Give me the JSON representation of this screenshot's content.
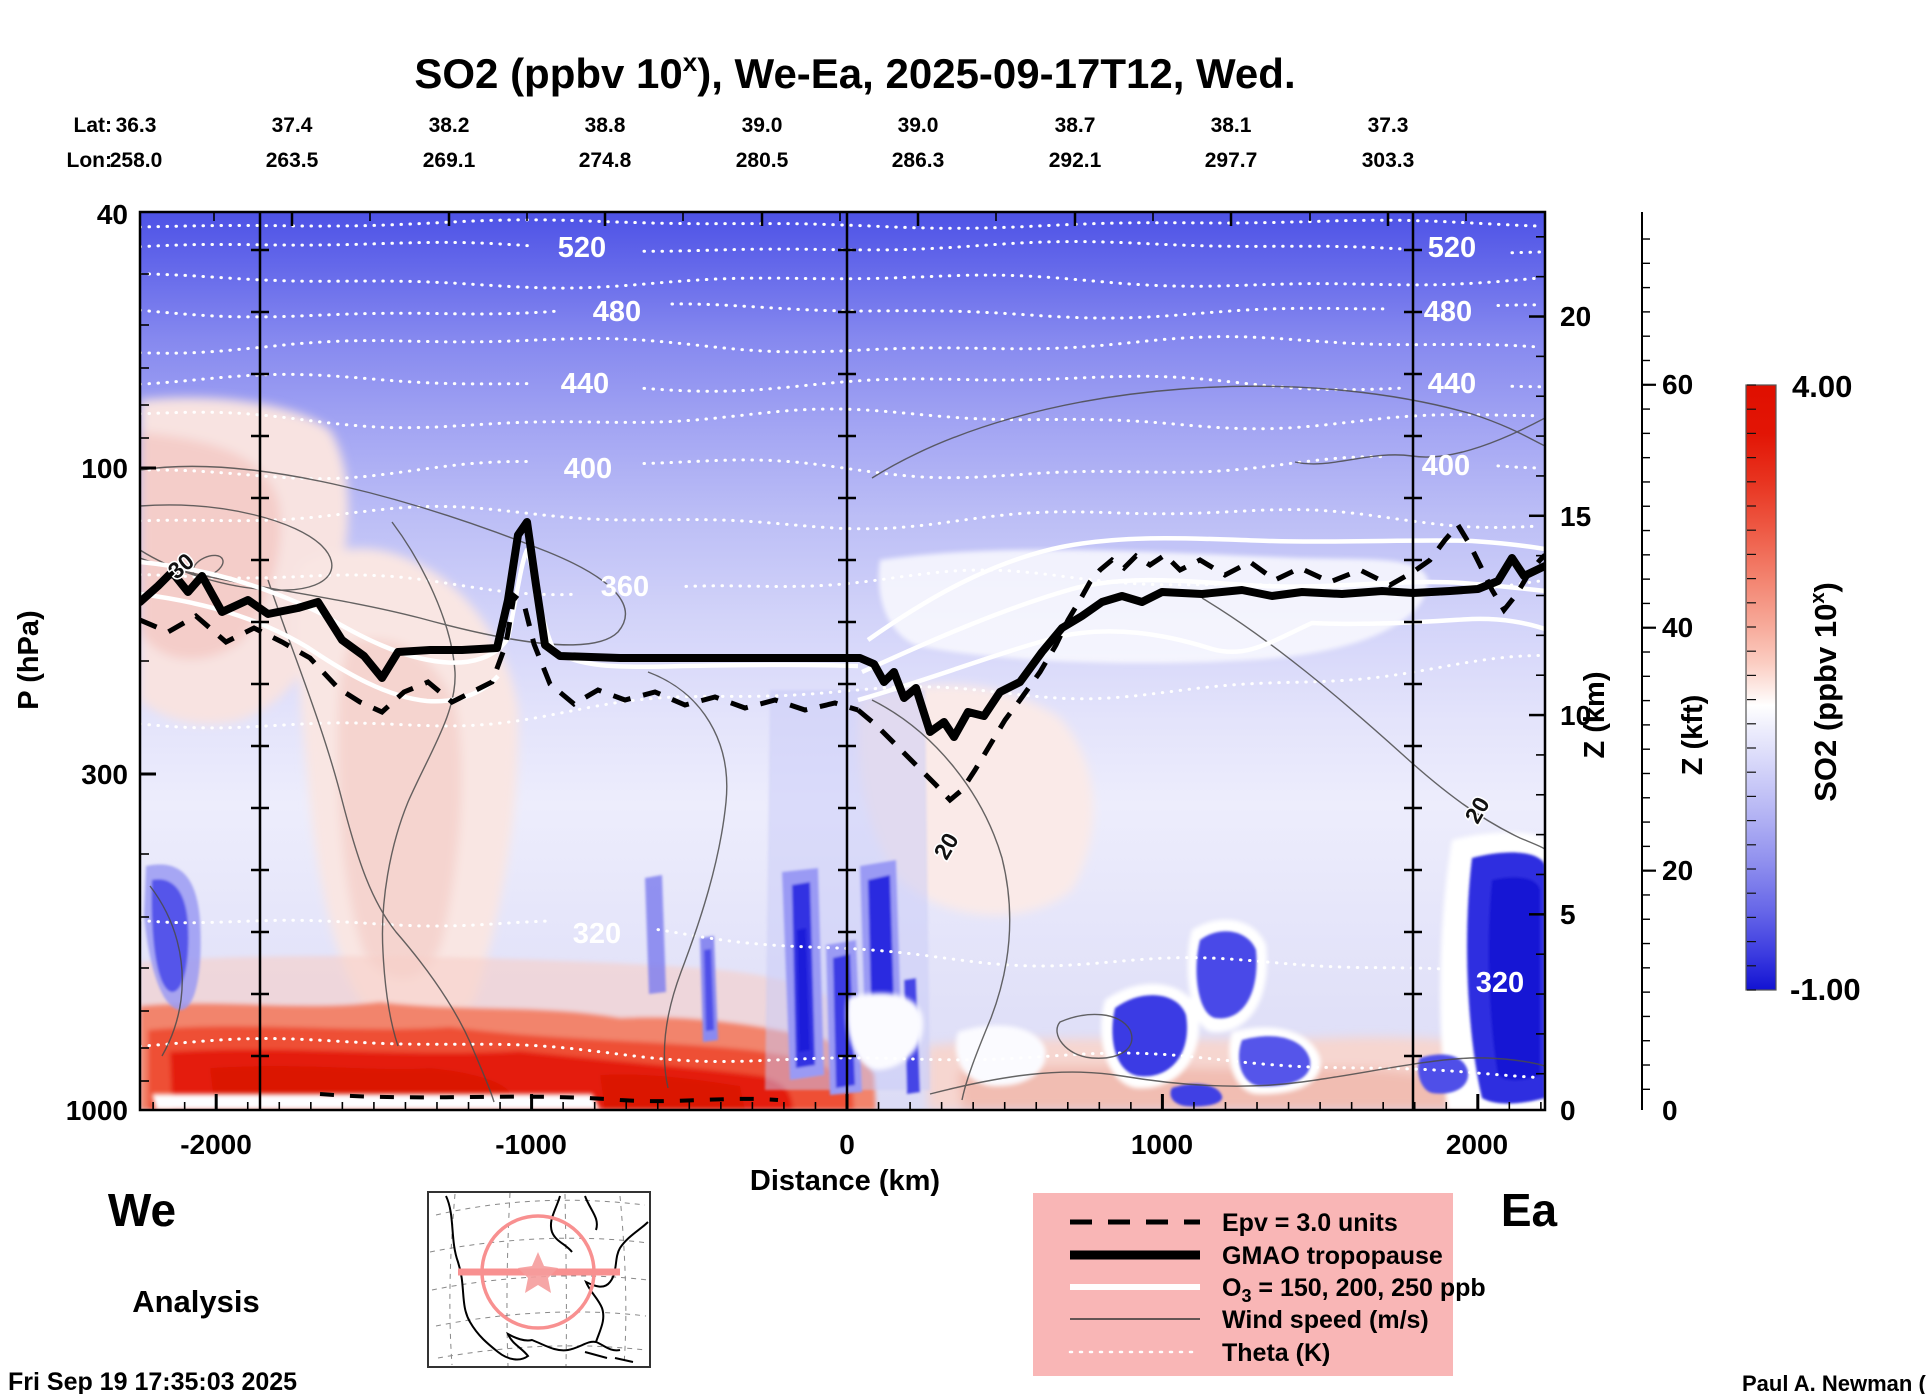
{
  "title": {
    "pre": "SO2 (ppbv 10",
    "sup": "x",
    "post": "), We-Ea, 2025-09-17T12, Wed."
  },
  "top_axis": {
    "lat_label": "Lat:",
    "lon_label": "Lon:",
    "lat": [
      "36.3",
      "37.4",
      "38.2",
      "38.8",
      "39.0",
      "39.0",
      "38.7",
      "38.1",
      "37.3"
    ],
    "lon": [
      "258.0",
      "263.5",
      "269.1",
      "274.8",
      "280.5",
      "286.3",
      "292.1",
      "297.7",
      "303.3"
    ]
  },
  "left_axis": {
    "label": "P (hPa)",
    "ticks": [
      "40",
      "100",
      "300",
      "1000"
    ]
  },
  "bottom_axis": {
    "label": "Distance (km)",
    "ticks": [
      "-2000",
      "-1000",
      "0",
      "1000",
      "2000"
    ]
  },
  "right_axis_km": {
    "label": "Z (km)",
    "ticks": [
      "20",
      "15",
      "10",
      "5",
      "0"
    ]
  },
  "right_axis_kft": {
    "label": "Z (kft)",
    "ticks": [
      "60",
      "40",
      "20",
      "0"
    ]
  },
  "colorbar": {
    "max": "4.00",
    "min": "-1.00",
    "label_pre": "SO2 (ppbv 10",
    "label_sup": "x",
    "label_post": ")"
  },
  "contours": {
    "theta_left": [
      "520",
      "480",
      "440",
      "400",
      "360",
      "320"
    ],
    "theta_right": [
      "520",
      "480",
      "440",
      "400",
      "320"
    ],
    "wind": [
      "30",
      "20",
      "20"
    ]
  },
  "legend": {
    "epv": "Epv = 3.0 units",
    "tropopause": "GMAO tropopause",
    "o3_pre": "O",
    "o3_sub": "3",
    "o3_post": " = 150, 200, 250 ppb",
    "wind": "Wind speed (m/s)",
    "theta": "Theta (K)"
  },
  "footer": {
    "we": "We",
    "ea": "Ea",
    "analysis": "Analysis",
    "timestamp": "Fri Sep 19 17:35:03 2025",
    "credit": "Paul A. Newman (NASA"
  },
  "colors": {
    "legend_bg": "#f9b6b6",
    "colorbar_high": "#e00f00",
    "colorbar_mid": "#ffffff",
    "colorbar_low": "#1212d2",
    "field_deep_red": "#e41e0c",
    "field_deep_blue": "#1d1dd9"
  },
  "chart_data": {
    "type": "heatmap",
    "title": "SO2 (ppbv 10^x), We-Ea, 2025-09-17T12, Wed.",
    "xlabel": "Distance (km)",
    "ylabel": "P (hPa)",
    "secondary_y_axes": [
      "Z (km)",
      "Z (kft)"
    ],
    "x_ticks": [
      -2000,
      -1000,
      0,
      1000,
      2000
    ],
    "x_range_km": [
      -2240,
      2215
    ],
    "y_scale": "log",
    "y_ticks_hPa": [
      40,
      100,
      300,
      1000
    ],
    "y_range_hPa": [
      40,
      1000
    ],
    "z_km_ticks": [
      0,
      5,
      10,
      15,
      20
    ],
    "z_kft_ticks": [
      0,
      20,
      40,
      60
    ],
    "colorbar": {
      "label": "SO2 (ppbv 10^x)",
      "min": -1.0,
      "max": 4.0,
      "low_color": "#1212d2",
      "mid_color": "#ffffff",
      "high_color": "#e00f00"
    },
    "section_endpoints": {
      "start": "We",
      "end": "Ea"
    },
    "waypoints": {
      "lat": [
        36.3,
        37.4,
        38.2,
        38.8,
        39.0,
        39.0,
        38.7,
        38.1,
        37.3
      ],
      "lon": [
        258.0,
        263.5,
        269.1,
        274.8,
        280.5,
        286.3,
        292.1,
        297.7,
        303.3
      ]
    },
    "reference_vertical_lines_km": [
      -1860,
      0,
      1800
    ],
    "overlays": [
      {
        "name": "Epv",
        "style": "black dashed",
        "value": "3.0 units"
      },
      {
        "name": "GMAO tropopause",
        "style": "thick black solid"
      },
      {
        "name": "O3",
        "style": "white solid",
        "levels": "150, 200, 250 ppb"
      },
      {
        "name": "Wind speed (m/s)",
        "style": "thin gray solid",
        "labeled_contours": [
          20,
          30
        ]
      },
      {
        "name": "Theta (K)",
        "style": "white dotted",
        "labeled_contours": [
          320,
          360,
          400,
          440,
          480,
          520
        ]
      }
    ],
    "notable_features": [
      "Deep red SO2 maximum (scale values 3-4) in boundary layer from about -2240 km to 0 km below ~800 hPa",
      "Dark blue low-SO2 vertical streaks near x=0 km in the lower troposphere",
      "Blue low-value patches near the surface on the eastern half, strongest near +2000 km",
      "Pale pink mid-tropospheric enhancements west of center",
      "Uniformly blue (low SO2) stratosphere above ~100 hPa",
      "Tropopause near 200 hPa with a spike near -1000 km and a dip just east of 0 km"
    ],
    "inset_map": "North America with red circle and cross-section chord marker",
    "analysis_label": "Analysis",
    "generated": "Fri Sep 19 17:35:03 2025",
    "credit": "Paul A. Newman (NASA"
  }
}
